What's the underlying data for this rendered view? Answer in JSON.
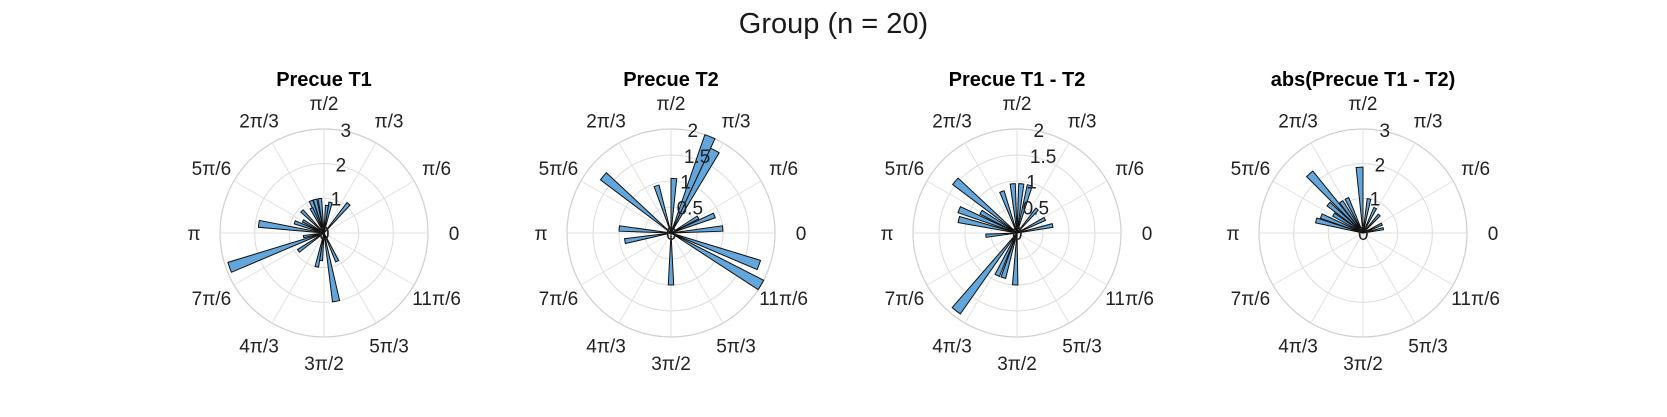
{
  "figure": {
    "title": "Group (n = 20)"
  },
  "chart_data": [
    {
      "type": "polar-histogram",
      "title": "Precue T1",
      "rlim": [
        0,
        3
      ],
      "rticks": [
        {
          "v": 1,
          "label": "1"
        },
        {
          "v": 2,
          "label": "2"
        },
        {
          "v": 3,
          "label": "3"
        }
      ],
      "theta_labels": [
        "0",
        "π/6",
        "π/3",
        "π/2",
        "2π/3",
        "5π/6",
        "π",
        "7π/6",
        "4π/3",
        "3π/2",
        "5π/3",
        "11π/6"
      ],
      "bin_width_deg": 6,
      "bars": [
        {
          "theta": 50,
          "r": 1.1
        },
        {
          "theta": 78,
          "r": 0.9
        },
        {
          "theta": 84,
          "r": 0.8
        },
        {
          "theta": 97,
          "r": 1.0
        },
        {
          "theta": 105,
          "r": 1.0
        },
        {
          "theta": 112,
          "r": 1.0
        },
        {
          "theta": 117,
          "r": 0.8
        },
        {
          "theta": 135,
          "r": 0.9
        },
        {
          "theta": 150,
          "r": 0.7
        },
        {
          "theta": 160,
          "r": 0.9
        },
        {
          "theta": 172,
          "r": 1.9
        },
        {
          "theta": 190,
          "r": 0.6
        },
        {
          "theta": 200,
          "r": 2.9
        },
        {
          "theta": 215,
          "r": 0.9
        },
        {
          "theta": 258,
          "r": 1.0
        },
        {
          "theta": 264,
          "r": 0.8
        },
        {
          "theta": 280,
          "r": 2.0
        },
        {
          "theta": 295,
          "r": 0.9
        }
      ]
    },
    {
      "type": "polar-histogram",
      "title": "Precue T2",
      "rlim": [
        0,
        2
      ],
      "rticks": [
        {
          "v": 0.5,
          "label": "0.5"
        },
        {
          "v": 1,
          "label": "1"
        },
        {
          "v": 1.5,
          "label": "1.5"
        },
        {
          "v": 2,
          "label": "2"
        }
      ],
      "theta_labels": [
        "0",
        "π/6",
        "π/3",
        "π/2",
        "2π/3",
        "5π/6",
        "π",
        "7π/6",
        "4π/3",
        "3π/2",
        "5π/3",
        "11π/6"
      ],
      "bin_width_deg": 6,
      "bars": [
        {
          "theta": 5,
          "r": 1.0
        },
        {
          "theta": 22,
          "r": 0.9
        },
        {
          "theta": 30,
          "r": 0.6
        },
        {
          "theta": 62,
          "r": 1.8
        },
        {
          "theta": 68,
          "r": 2.0
        },
        {
          "theta": 87,
          "r": 1.05
        },
        {
          "theta": 107,
          "r": 0.95
        },
        {
          "theta": 140,
          "r": 1.7
        },
        {
          "theta": 175,
          "r": 1.0
        },
        {
          "theta": 190,
          "r": 0.9
        },
        {
          "theta": 270,
          "r": 1.0
        },
        {
          "theta": 330,
          "r": 2.0
        },
        {
          "theta": 340,
          "r": 1.8
        }
      ]
    },
    {
      "type": "polar-histogram",
      "title": "Precue T1 - T2",
      "rlim": [
        0,
        2
      ],
      "rticks": [
        {
          "v": 0.5,
          "label": "0.5"
        },
        {
          "v": 1,
          "label": "1"
        },
        {
          "v": 1.5,
          "label": "1.5"
        },
        {
          "v": 2,
          "label": "2"
        }
      ],
      "theta_labels": [
        "0",
        "π/6",
        "π/3",
        "π/2",
        "2π/3",
        "5π/6",
        "π",
        "7π/6",
        "4π/3",
        "3π/2",
        "5π/3",
        "11π/6"
      ],
      "bin_width_deg": 6,
      "bars": [
        {
          "theta": 12,
          "r": 0.7
        },
        {
          "theta": 27,
          "r": 0.6
        },
        {
          "theta": 50,
          "r": 0.6
        },
        {
          "theta": 75,
          "r": 0.95
        },
        {
          "theta": 85,
          "r": 0.95
        },
        {
          "theta": 95,
          "r": 0.95
        },
        {
          "theta": 110,
          "r": 0.85
        },
        {
          "theta": 140,
          "r": 1.55
        },
        {
          "theta": 150,
          "r": 0.8
        },
        {
          "theta": 158,
          "r": 1.2
        },
        {
          "theta": 167,
          "r": 1.15
        },
        {
          "theta": 185,
          "r": 0.6
        },
        {
          "theta": 232,
          "r": 1.9
        },
        {
          "theta": 245,
          "r": 0.9
        },
        {
          "theta": 253,
          "r": 0.9
        },
        {
          "theta": 268,
          "r": 1.0
        }
      ]
    },
    {
      "type": "polar-histogram",
      "title": "abs(Precue T1 - T2)",
      "rlim": [
        0,
        3
      ],
      "rticks": [
        {
          "v": 1,
          "label": "1"
        },
        {
          "v": 2,
          "label": "2"
        },
        {
          "v": 3,
          "label": "3"
        }
      ],
      "theta_labels": [
        "0",
        "π/6",
        "π/3",
        "π/2",
        "2π/3",
        "5π/6",
        "π",
        "7π/6",
        "4π/3",
        "3π/2",
        "5π/3",
        "11π/6"
      ],
      "bin_width_deg": 6,
      "bars": [
        {
          "theta": 12,
          "r": 0.6
        },
        {
          "theta": 25,
          "r": 0.6
        },
        {
          "theta": 48,
          "r": 0.7
        },
        {
          "theta": 64,
          "r": 0.8
        },
        {
          "theta": 80,
          "r": 1.0
        },
        {
          "theta": 93,
          "r": 1.9
        },
        {
          "theta": 115,
          "r": 1.1
        },
        {
          "theta": 125,
          "r": 1.1
        },
        {
          "theta": 132,
          "r": 2.3
        },
        {
          "theta": 140,
          "r": 1.3
        },
        {
          "theta": 148,
          "r": 1.0
        },
        {
          "theta": 158,
          "r": 1.3
        },
        {
          "theta": 165,
          "r": 1.4
        }
      ]
    }
  ]
}
